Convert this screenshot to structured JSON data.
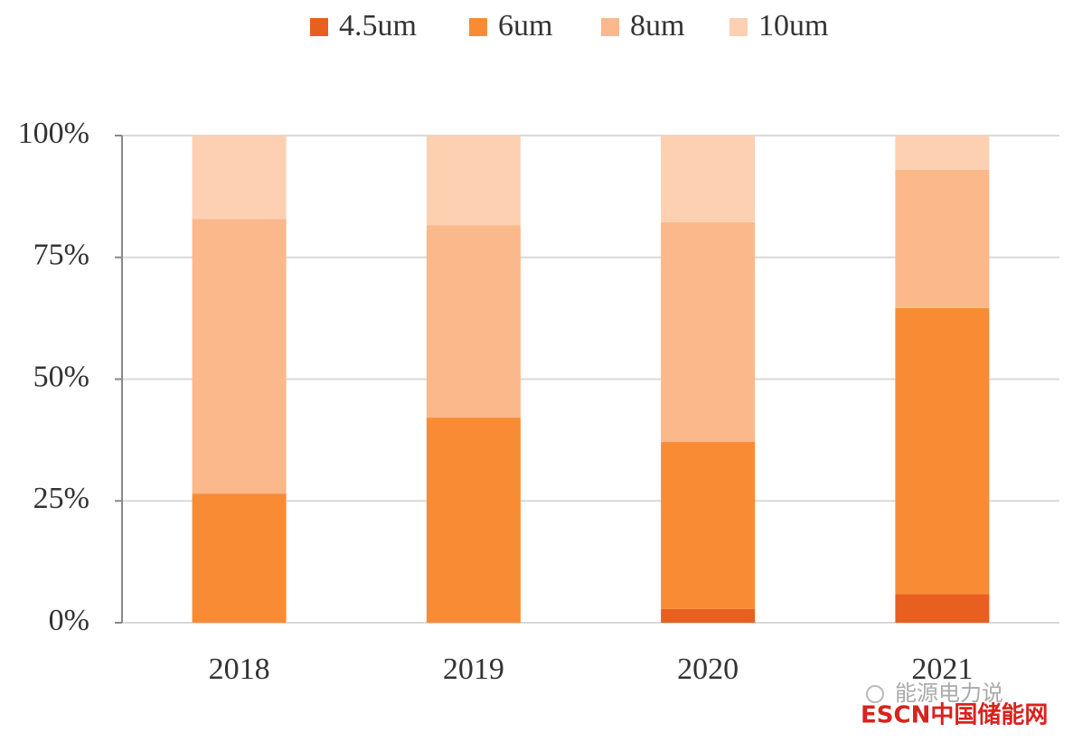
{
  "chart_data": {
    "type": "stacked_bar",
    "categories": [
      "2018",
      "2019",
      "2020",
      "2021"
    ],
    "series": [
      {
        "name": "4.5um",
        "color": "#e8601f",
        "values": [
          0,
          0,
          2.8,
          5.9
        ]
      },
      {
        "name": "6um",
        "color": "#f98b35",
        "values": [
          26.5,
          42.1,
          34.3,
          58.7
        ]
      },
      {
        "name": "8um",
        "color": "#fbb88a",
        "values": [
          56.4,
          39.5,
          45.1,
          28.4
        ]
      },
      {
        "name": "10um",
        "color": "#fdd0b2",
        "values": [
          17.1,
          18.4,
          17.8,
          7.0
        ]
      }
    ],
    "ylim": [
      0,
      100
    ],
    "yticks": [
      {
        "value": 0,
        "label": "0%"
      },
      {
        "value": 25,
        "label": "25%"
      },
      {
        "value": 50,
        "label": "50%"
      },
      {
        "value": 75,
        "label": "75%"
      },
      {
        "value": 100,
        "label": "100%"
      }
    ],
    "grid": true,
    "legend": "top",
    "watermark": {
      "account": "能源电力说",
      "site": "ESCN中国储能网"
    }
  }
}
